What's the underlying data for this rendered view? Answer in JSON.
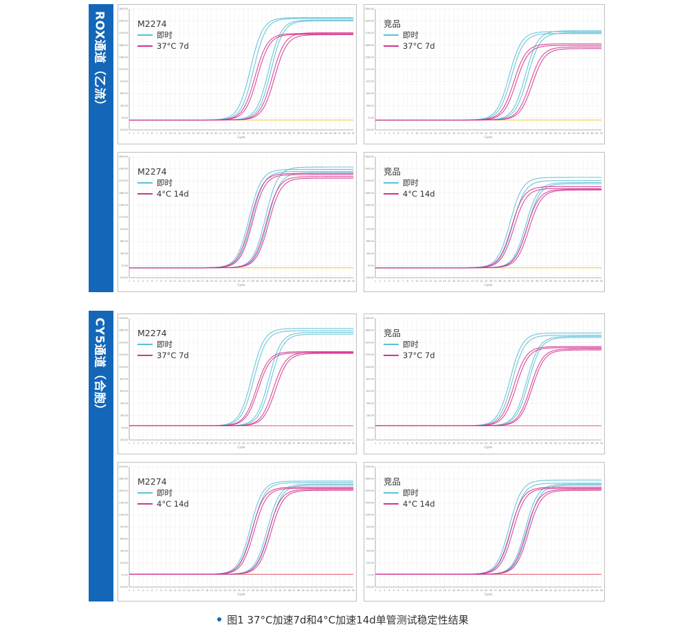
{
  "groups": [
    {
      "label": "ROX通道（乙流）",
      "key": "rox"
    },
    {
      "label": "CY5通道（合胞）",
      "key": "cy5"
    }
  ],
  "colors": {
    "sidebar": "#1467b8",
    "fresh": "#5bbfd6",
    "treated": "#d6338f",
    "baseline_rox": "#f2c230",
    "baseline_cy5": "#e65a6a",
    "grid": "#ececec"
  },
  "caption": "图1 37°C加速7d和4°C加速14d单管测试稳定性结果",
  "chart_data": [
    {
      "type": "line",
      "group": "rox",
      "title": "M2274",
      "legend": [
        "即时",
        "37°C  7d"
      ],
      "xlabel": "Cycle",
      "x": [
        1,
        50
      ],
      "ylim": [
        -250,
        2800
      ],
      "series": [
        {
          "name": "即时",
          "color": "#5bbfd6",
          "curves": [
            {
              "ct": 27.5,
              "plateau": 2580
            },
            {
              "ct": 28.2,
              "plateau": 2560
            },
            {
              "ct": 31.5,
              "plateau": 2520
            },
            {
              "ct": 32.0,
              "plateau": 2500
            }
          ]
        },
        {
          "name": "37°C  7d",
          "color": "#d6338f",
          "curves": [
            {
              "ct": 28.5,
              "plateau": 2180
            },
            {
              "ct": 29.0,
              "plateau": 2160
            },
            {
              "ct": 32.3,
              "plateau": 2200
            },
            {
              "ct": 32.8,
              "plateau": 2150
            }
          ]
        }
      ],
      "baseline": {
        "value": 0,
        "color": "#f2c230"
      }
    },
    {
      "type": "line",
      "group": "rox",
      "title": "竞品",
      "legend": [
        "即时",
        "37°C  7d"
      ],
      "xlabel": "Cycle",
      "x": [
        1,
        50
      ],
      "ylim": [
        -250,
        2800
      ],
      "series": [
        {
          "name": "即时",
          "color": "#5bbfd6",
          "curves": [
            {
              "ct": 30.0,
              "plateau": 2230
            },
            {
              "ct": 30.5,
              "plateau": 2180
            },
            {
              "ct": 33.5,
              "plateau": 2250
            },
            {
              "ct": 34.0,
              "plateau": 2200
            }
          ]
        },
        {
          "name": "37°C  7d",
          "color": "#d6338f",
          "curves": [
            {
              "ct": 31.0,
              "plateau": 1920
            },
            {
              "ct": 31.5,
              "plateau": 1880
            },
            {
              "ct": 34.5,
              "plateau": 1840
            },
            {
              "ct": 35.0,
              "plateau": 1800
            }
          ]
        }
      ],
      "baseline": {
        "value": 0,
        "color": "#f2c230"
      }
    },
    {
      "type": "line",
      "group": "rox",
      "title": "M2274",
      "legend": [
        "即时",
        "4°C  14d"
      ],
      "xlabel": "Cycle",
      "x": [
        1,
        50
      ],
      "ylim": [
        -250,
        2800
      ],
      "series": [
        {
          "name": "即时",
          "color": "#5bbfd6",
          "curves": [
            {
              "ct": 27.2,
              "plateau": 2480
            },
            {
              "ct": 27.8,
              "plateau": 2430
            },
            {
              "ct": 30.8,
              "plateau": 2540
            },
            {
              "ct": 31.3,
              "plateau": 2400
            }
          ]
        },
        {
          "name": "4°C  14d",
          "color": "#d6338f",
          "curves": [
            {
              "ct": 27.5,
              "plateau": 2380
            },
            {
              "ct": 28.0,
              "plateau": 2350
            },
            {
              "ct": 31.0,
              "plateau": 2300
            },
            {
              "ct": 31.5,
              "plateau": 2260
            }
          ]
        }
      ],
      "baseline": {
        "value": 0,
        "color": "#f2c230"
      }
    },
    {
      "type": "line",
      "group": "rox",
      "title": "竞品",
      "legend": [
        "即时",
        "4°C  14d"
      ],
      "xlabel": "Cycle",
      "x": [
        1,
        50
      ],
      "ylim": [
        -250,
        2800
      ],
      "series": [
        {
          "name": "即时",
          "color": "#5bbfd6",
          "curves": [
            {
              "ct": 30.2,
              "plateau": 2280
            },
            {
              "ct": 30.8,
              "plateau": 2200
            },
            {
              "ct": 33.6,
              "plateau": 2150
            },
            {
              "ct": 34.0,
              "plateau": 2120
            }
          ]
        },
        {
          "name": "4°C  14d",
          "color": "#d6338f",
          "curves": [
            {
              "ct": 30.5,
              "plateau": 2050
            },
            {
              "ct": 31.0,
              "plateau": 2000
            },
            {
              "ct": 33.8,
              "plateau": 1980
            },
            {
              "ct": 34.3,
              "plateau": 1960
            }
          ]
        }
      ],
      "baseline": {
        "value": 0,
        "color": "#f2c230"
      }
    },
    {
      "type": "line",
      "group": "cy5",
      "title": "M2274",
      "legend": [
        "即时",
        "37°C  7d"
      ],
      "xlabel": "Cycle",
      "x": [
        1,
        50
      ],
      "ylim": [
        -250,
        1900
      ],
      "series": [
        {
          "name": "即时",
          "color": "#5bbfd6",
          "curves": [
            {
              "ct": 27.8,
              "plateau": 1720
            },
            {
              "ct": 28.3,
              "plateau": 1680
            },
            {
              "ct": 31.5,
              "plateau": 1650
            },
            {
              "ct": 32.0,
              "plateau": 1620
            }
          ]
        },
        {
          "name": "37°C  7d",
          "color": "#d6338f",
          "curves": [
            {
              "ct": 28.8,
              "plateau": 1310
            },
            {
              "ct": 29.2,
              "plateau": 1290
            },
            {
              "ct": 32.5,
              "plateau": 1300
            },
            {
              "ct": 33.0,
              "plateau": 1280
            }
          ]
        }
      ],
      "baseline": {
        "value": 0,
        "color": "#e65a6a"
      }
    },
    {
      "type": "line",
      "group": "cy5",
      "title": "竞品",
      "legend": [
        "即时",
        "37°C  7d"
      ],
      "xlabel": "Cycle",
      "x": [
        1,
        50
      ],
      "ylim": [
        -250,
        1900
      ],
      "series": [
        {
          "name": "即时",
          "color": "#5bbfd6",
          "curves": [
            {
              "ct": 30.2,
              "plateau": 1640
            },
            {
              "ct": 30.7,
              "plateau": 1600
            },
            {
              "ct": 33.8,
              "plateau": 1580
            },
            {
              "ct": 34.2,
              "plateau": 1560
            }
          ]
        },
        {
          "name": "37°C  7d",
          "color": "#d6338f",
          "curves": [
            {
              "ct": 31.0,
              "plateau": 1400
            },
            {
              "ct": 31.5,
              "plateau": 1380
            },
            {
              "ct": 34.6,
              "plateau": 1360
            },
            {
              "ct": 35.0,
              "plateau": 1340
            }
          ]
        }
      ],
      "baseline": {
        "value": 0,
        "color": "#e65a6a"
      }
    },
    {
      "type": "line",
      "group": "cy5",
      "title": "M2274",
      "legend": [
        "即时",
        "4°C  14d"
      ],
      "xlabel": "Cycle",
      "x": [
        1,
        50
      ],
      "ylim": [
        -250,
        2100
      ],
      "series": [
        {
          "name": "即时",
          "color": "#5bbfd6",
          "curves": [
            {
              "ct": 27.5,
              "plateau": 1820
            },
            {
              "ct": 28.0,
              "plateau": 1790
            },
            {
              "ct": 31.2,
              "plateau": 1760
            },
            {
              "ct": 31.7,
              "plateau": 1740
            }
          ]
        },
        {
          "name": "4°C  14d",
          "color": "#d6338f",
          "curves": [
            {
              "ct": 27.8,
              "plateau": 1700
            },
            {
              "ct": 28.3,
              "plateau": 1680
            },
            {
              "ct": 31.5,
              "plateau": 1660
            },
            {
              "ct": 32.0,
              "plateau": 1640
            }
          ]
        }
      ],
      "baseline": {
        "value": 0,
        "color": "#e65a6a"
      }
    },
    {
      "type": "line",
      "group": "cy5",
      "title": "竞品",
      "legend": [
        "即时",
        "4°C  14d"
      ],
      "xlabel": "Cycle",
      "x": [
        1,
        50
      ],
      "ylim": [
        -250,
        2100
      ],
      "series": [
        {
          "name": "即时",
          "color": "#5bbfd6",
          "curves": [
            {
              "ct": 30.0,
              "plateau": 1840
            },
            {
              "ct": 30.5,
              "plateau": 1780
            },
            {
              "ct": 33.5,
              "plateau": 1760
            },
            {
              "ct": 34.0,
              "plateau": 1740
            }
          ]
        },
        {
          "name": "4°C  14d",
          "color": "#d6338f",
          "curves": [
            {
              "ct": 30.3,
              "plateau": 1700
            },
            {
              "ct": 30.8,
              "plateau": 1680
            },
            {
              "ct": 33.7,
              "plateau": 1660
            },
            {
              "ct": 34.2,
              "plateau": 1640
            }
          ]
        }
      ],
      "baseline": {
        "value": 0,
        "color": "#e65a6a"
      }
    }
  ]
}
